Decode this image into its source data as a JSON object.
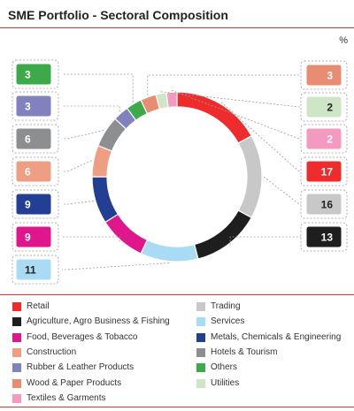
{
  "header": {
    "title": "SME Portfolio - Sectoral Composition",
    "unit": "%"
  },
  "chart_data": {
    "type": "pie",
    "subtype": "donut",
    "title": "SME Portfolio - Sectoral Composition",
    "unit": "%",
    "slices": [
      {
        "name": "Retail",
        "value": 17,
        "color": "#ee2c2c"
      },
      {
        "name": "Trading",
        "value": 16,
        "color": "#c8c8c8"
      },
      {
        "name": "Agriculture, Agro Business & Fishing",
        "value": 13,
        "color": "#1e1e1e"
      },
      {
        "name": "Services",
        "value": 11,
        "color": "#a9dcf4"
      },
      {
        "name": "Food, Beverages & Tobacco",
        "value": 9,
        "color": "#e0168d"
      },
      {
        "name": "Metals, Chemicals & Engineering",
        "value": 9,
        "color": "#233f93"
      },
      {
        "name": "Construction",
        "value": 6,
        "color": "#ee9e82"
      },
      {
        "name": "Hotels & Tourism",
        "value": 6,
        "color": "#8c8e90"
      },
      {
        "name": "Rubber & Leather Products",
        "value": 3,
        "color": "#8181bd"
      },
      {
        "name": "Others",
        "value": 3,
        "color": "#3daa49"
      },
      {
        "name": "Wood & Paper Products",
        "value": 3,
        "color": "#e88c74"
      },
      {
        "name": "Utilities",
        "value": 2,
        "color": "#cfe6c6"
      },
      {
        "name": "Textiles & Garments",
        "value": 2,
        "color": "#f49ac1"
      }
    ],
    "legend": [
      "Retail",
      "Trading",
      "Agriculture, Agro Business & Fishing",
      "Services",
      "Food, Beverages & Tobacco",
      "Metals, Chemicals & Engineering",
      "Construction",
      "Hotels & Tourism",
      "Rubber & Leather Products",
      "Others",
      "Wood & Paper Products",
      "Utilities",
      "Textiles & Garments"
    ]
  }
}
